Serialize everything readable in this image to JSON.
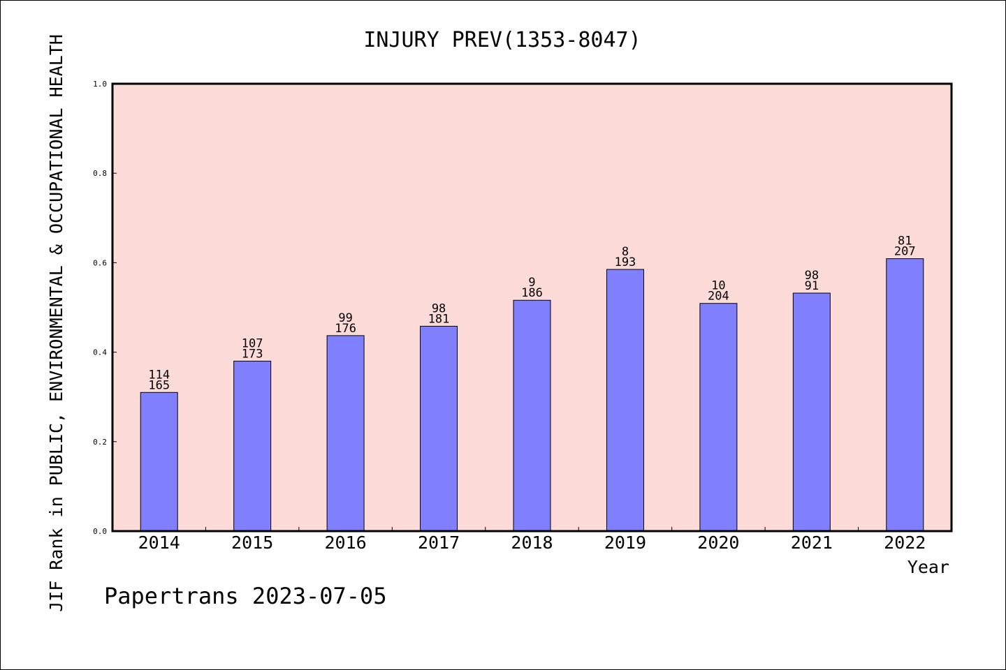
{
  "chart_data": {
    "type": "bar",
    "title": "INJURY PREV(1353-8047)",
    "xlabel": "Year",
    "ylabel": "JIF Rank in PUBLIC, ENVIRONMENTAL & OCCUPATIONAL HEALTH",
    "categories": [
      "2014",
      "2015",
      "2016",
      "2017",
      "2018",
      "2019",
      "2020",
      "2021",
      "2022"
    ],
    "values": [
      0.31,
      0.38,
      0.437,
      0.458,
      0.516,
      0.585,
      0.509,
      0.532,
      0.609
    ],
    "rank_labels": [
      "114",
      "107",
      "99",
      "98",
      "9",
      "8",
      "10",
      "98",
      "81"
    ],
    "total_labels": [
      "165",
      "173",
      "176",
      "181",
      "186",
      "193",
      "204",
      "91",
      "207"
    ],
    "ylim": [
      0,
      1.0
    ],
    "yticks": [
      "0.0",
      "0.2",
      "0.4",
      "0.6",
      "0.8",
      "1.0"
    ],
    "grid": false,
    "colors": {
      "plot_background": "#fddbd8",
      "bar_fill": "#8080ff",
      "bar_stroke": "#000000"
    }
  },
  "footer": {
    "watermark": "Papertrans 2023-07-05"
  }
}
